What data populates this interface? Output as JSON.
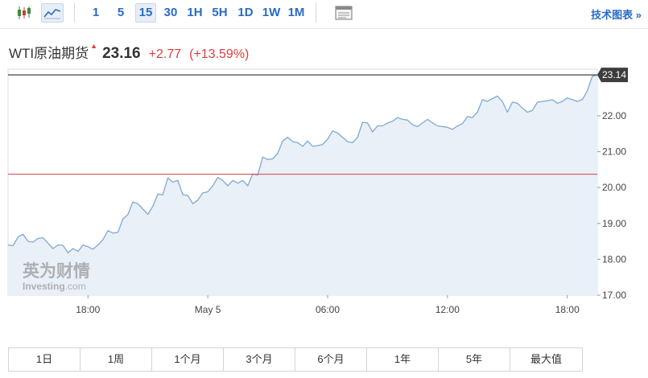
{
  "toolbar": {
    "chart_type_icons": [
      "candlestick-icon",
      "area-line-icon"
    ],
    "timeframes": [
      "1",
      "5",
      "15",
      "30",
      "1H",
      "5H",
      "1D",
      "1W",
      "1M"
    ],
    "active_timeframe": "15",
    "settings_icon": "panel-icon",
    "tech_chart_label": "技术图表 »"
  },
  "quote": {
    "name": "WTI原油期货",
    "price": "23.16",
    "change": "+2.77",
    "change_pct": "(+13.59%)"
  },
  "watermark": {
    "cn": "英为财情",
    "en": "Investing",
    "suffix": ".com"
  },
  "colors": {
    "line": "#7ea9d4",
    "area": "#e9f0f7",
    "up": "#e03c3c",
    "link": "#2a6bc4",
    "ref_line": "#d44040",
    "last_line": "#444444",
    "price_tag_bg": "#3d3d3d"
  },
  "range_tabs": [
    "1日",
    "1周",
    "1个月",
    "3个月",
    "6个月",
    "1年",
    "5年",
    "最大值"
  ],
  "chart_data": {
    "type": "area",
    "x_tick_labels": [
      "18:00",
      "May 5",
      "06:00",
      "12:00",
      "18:00"
    ],
    "x_tick_index": [
      16,
      40,
      64,
      88,
      112
    ],
    "y_ticks": [
      17.0,
      18.0,
      19.0,
      20.0,
      21.0,
      22.0
    ],
    "ylim": [
      17.0,
      23.3
    ],
    "reference_line": 20.37,
    "last_value_label": "23.14",
    "last_value": 23.14,
    "values": [
      18.4,
      18.38,
      18.62,
      18.7,
      18.5,
      18.48,
      18.58,
      18.6,
      18.45,
      18.3,
      18.4,
      18.39,
      18.18,
      18.3,
      18.22,
      18.4,
      18.35,
      18.28,
      18.4,
      18.55,
      18.8,
      18.73,
      18.75,
      19.12,
      19.25,
      19.6,
      19.55,
      19.4,
      19.25,
      19.48,
      19.82,
      19.8,
      20.27,
      20.15,
      20.2,
      19.8,
      19.78,
      19.55,
      19.65,
      19.85,
      19.88,
      20.05,
      20.28,
      20.2,
      20.05,
      20.2,
      20.12,
      20.2,
      20.05,
      20.38,
      20.35,
      20.85,
      20.78,
      20.8,
      20.95,
      21.3,
      21.4,
      21.28,
      21.25,
      21.15,
      21.3,
      21.15,
      21.17,
      21.2,
      21.35,
      21.58,
      21.52,
      21.4,
      21.28,
      21.25,
      21.4,
      21.82,
      21.8,
      21.55,
      21.72,
      21.72,
      21.8,
      21.85,
      21.95,
      21.9,
      21.88,
      21.75,
      21.7,
      21.8,
      21.9,
      21.8,
      21.72,
      21.7,
      21.68,
      21.62,
      21.72,
      21.78,
      21.98,
      21.95,
      22.1,
      22.45,
      22.4,
      22.48,
      22.55,
      22.4,
      22.1,
      22.38,
      22.35,
      22.22,
      22.1,
      22.15,
      22.38,
      22.4,
      22.42,
      22.45,
      22.35,
      22.4,
      22.5,
      22.45,
      22.4,
      22.45,
      22.7,
      23.1,
      23.14
    ]
  }
}
